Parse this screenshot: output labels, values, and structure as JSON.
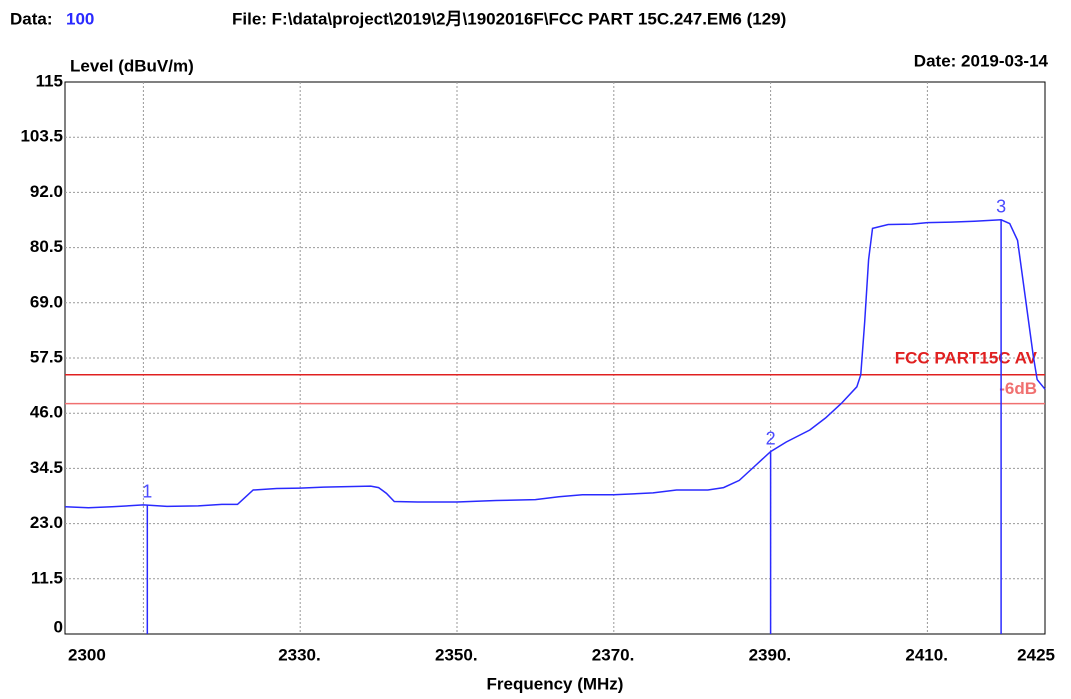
{
  "chart_data": {
    "type": "line",
    "data_label": "Data:",
    "data_number": "100",
    "file": "File: F:\\data\\project\\2019\\2月\\1902016F\\FCC PART 15C.247.EM6  (129)",
    "date": "Date: 2019-03-14",
    "ylabel": "Level (dBuV/m)",
    "xlabel": "Frequency (MHz)",
    "xlim": [
      2300,
      2425
    ],
    "ylim": [
      0,
      115
    ],
    "xticks": [
      {
        "value": 2300,
        "label": "2300"
      },
      {
        "value": 2330,
        "label": "2330."
      },
      {
        "value": 2350,
        "label": "2350."
      },
      {
        "value": 2370,
        "label": "2370."
      },
      {
        "value": 2390,
        "label": "2390."
      },
      {
        "value": 2410,
        "label": "2410."
      },
      {
        "value": 2425,
        "label": "2425"
      }
    ],
    "xgrid": [
      2310,
      2330,
      2350,
      2370,
      2390,
      2410
    ],
    "yticks": [
      0,
      {
        "value": 11.5,
        "label": "11.5"
      },
      {
        "value": 23,
        "label": "23.0"
      },
      {
        "value": 34.5,
        "label": "34.5"
      },
      {
        "value": 46,
        "label": "46.0"
      },
      {
        "value": 57.5,
        "label": "57.5"
      },
      {
        "value": 69,
        "label": "69.0"
      },
      {
        "value": 80.5,
        "label": "80.5"
      },
      {
        "value": 92,
        "label": "92.0"
      },
      {
        "value": 103.5,
        "label": "103.5"
      },
      115
    ],
    "grid": true,
    "series": [
      {
        "name": "Level",
        "color": "#2a2aff",
        "x": [
          2300,
          2303,
          2306,
          2310,
          2313,
          2317,
          2320,
          2322,
          2323,
          2324,
          2327,
          2330,
          2333,
          2336,
          2339,
          2340,
          2341,
          2342,
          2345,
          2350,
          2355,
          2360,
          2363,
          2366,
          2370,
          2375,
          2378,
          2382,
          2384,
          2386,
          2388,
          2390,
          2392,
          2395,
          2397,
          2399,
          2401,
          2401.5,
          2402,
          2402.5,
          2403,
          2405,
          2408,
          2410,
          2413,
          2416,
          2419.4,
          2420.5,
          2421.5,
          2422.5,
          2423.5,
          2424,
          2425
        ],
        "values": [
          26.5,
          26.3,
          26.5,
          26.9,
          26.6,
          26.7,
          27.0,
          27.0,
          28.5,
          30.0,
          30.3,
          30.4,
          30.6,
          30.7,
          30.8,
          30.5,
          29.3,
          27.6,
          27.5,
          27.5,
          27.8,
          28.0,
          28.6,
          29.0,
          29.0,
          29.4,
          30.0,
          30.0,
          30.5,
          32.0,
          35.0,
          38.0,
          40.0,
          42.5,
          45.0,
          48.0,
          51.5,
          54.0,
          65.0,
          78.0,
          84.5,
          85.3,
          85.4,
          85.7,
          85.8,
          86.0,
          86.3,
          85.5,
          82.0,
          70.0,
          58.0,
          53.0,
          51.0
        ]
      }
    ],
    "limits": [
      {
        "name": "FCC PART15C AV",
        "value": 54,
        "color": "#e02020"
      },
      {
        "name": "-6dB",
        "value": 48,
        "color": "#f07070"
      }
    ],
    "markers": [
      {
        "name": "1",
        "x": 2310.5,
        "value": 26.9
      },
      {
        "name": "2",
        "x": 2390,
        "value": 38.0
      },
      {
        "name": "3",
        "x": 2419.4,
        "value": 86.3
      }
    ]
  }
}
